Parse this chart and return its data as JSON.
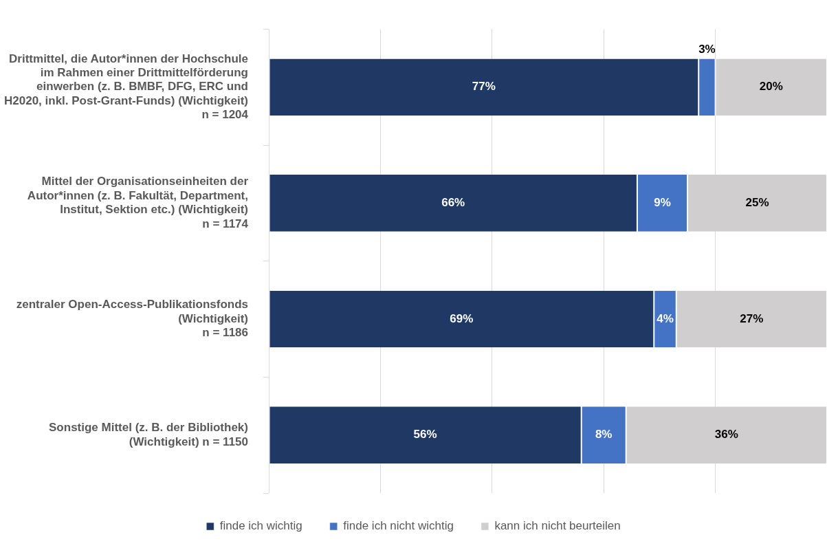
{
  "chart_data": {
    "type": "bar",
    "orientation": "horizontal",
    "stacked": true,
    "categories": [
      "Drittmittel, die Autor*innen der Hochschule im Rahmen einer Drittmittelförderung einwerben (z. B. BMBF, DFG, ERC und H2020, inkl. Post-Grant-Funds) (Wichtigkeit)\nn = 1204",
      "Mittel der Organisationseinheiten der Autor*innen (z. B. Fakultät, Department, Institut, Sektion etc.) (Wichtigkeit)\nn = 1174",
      "zentraler Open-Access-Publikationsfonds (Wichtigkeit)\nn = 1186",
      "Sonstige Mittel (z. B. der Bibliothek) (Wichtigkeit) n = 1150"
    ],
    "series": [
      {
        "name": "finde ich wichtig",
        "color": "#203864",
        "values": [
          77,
          66,
          69,
          56
        ],
        "value_labels": [
          "77%",
          "66%",
          "69%",
          "56%"
        ]
      },
      {
        "name": "finde ich nicht wichtig",
        "color": "#4472c4",
        "values": [
          3,
          9,
          4,
          8
        ],
        "value_labels": [
          "3%",
          "9%",
          "4%",
          "8%"
        ]
      },
      {
        "name": "kann ich nicht beurteilen",
        "color": "#d0cece",
        "values": [
          20,
          25,
          27,
          36
        ],
        "value_labels": [
          "20%",
          "25%",
          "27%",
          "36%"
        ]
      }
    ],
    "xlim": [
      0,
      100
    ],
    "xticks": [
      {
        "value": 0,
        "label": null
      },
      {
        "value": 20,
        "label": null
      },
      {
        "value": 40,
        "label": null
      },
      {
        "value": 60,
        "label": null
      },
      {
        "value": 80,
        "label": null
      }
    ],
    "grid": "x",
    "tick_labels": "y",
    "legend": "bottom"
  }
}
